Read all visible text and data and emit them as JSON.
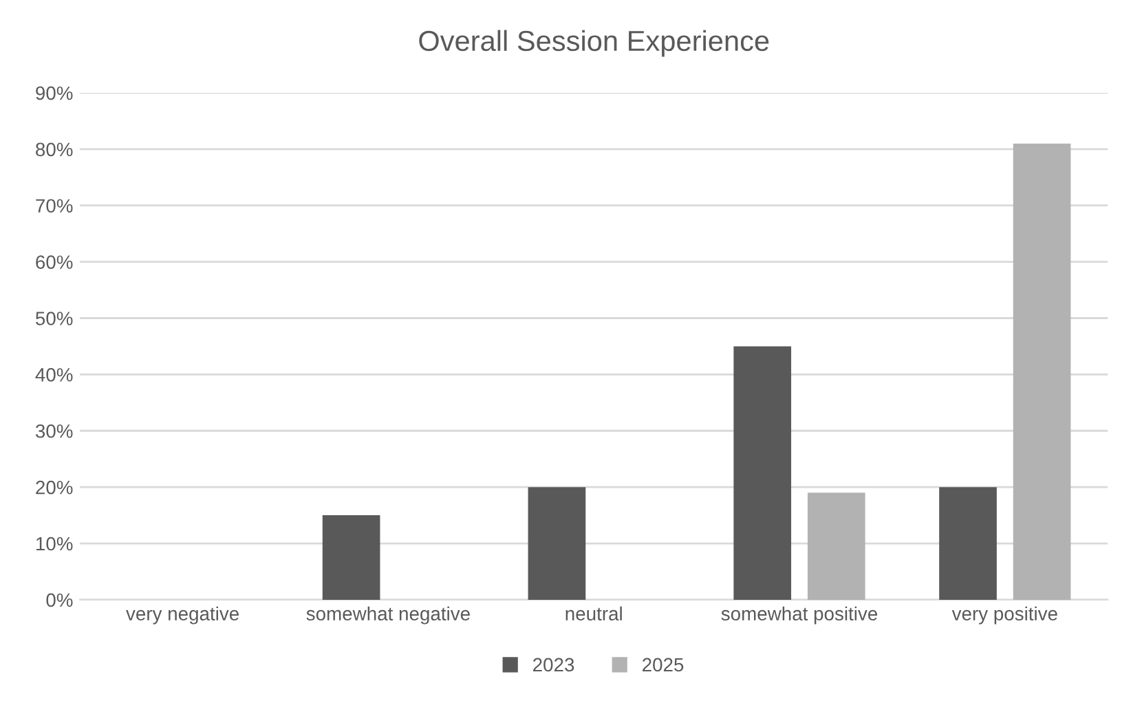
{
  "chart_data": {
    "type": "bar",
    "title": "Overall Session Experience",
    "categories": [
      "very negative",
      "somewhat negative",
      "neutral",
      "somewhat positive",
      "very positive"
    ],
    "series": [
      {
        "name": "2023",
        "color": "#595959",
        "values": [
          0,
          15,
          20,
          45,
          20
        ]
      },
      {
        "name": "2025",
        "color": "#b2b2b2",
        "values": [
          0,
          0,
          0,
          19,
          81
        ]
      }
    ],
    "ylim": [
      0,
      90
    ],
    "yticks": [
      {
        "value": 0,
        "label": "0%"
      },
      {
        "value": 10,
        "label": "10%"
      },
      {
        "value": 20,
        "label": "20%"
      },
      {
        "value": 30,
        "label": "30%"
      },
      {
        "value": 40,
        "label": "40%"
      },
      {
        "value": 50,
        "label": "50%"
      },
      {
        "value": 60,
        "label": "60%"
      },
      {
        "value": 70,
        "label": "70%"
      },
      {
        "value": 80,
        "label": "80%"
      },
      {
        "value": 90,
        "label": "90%"
      }
    ],
    "grid": "y",
    "legend": "bottom"
  }
}
